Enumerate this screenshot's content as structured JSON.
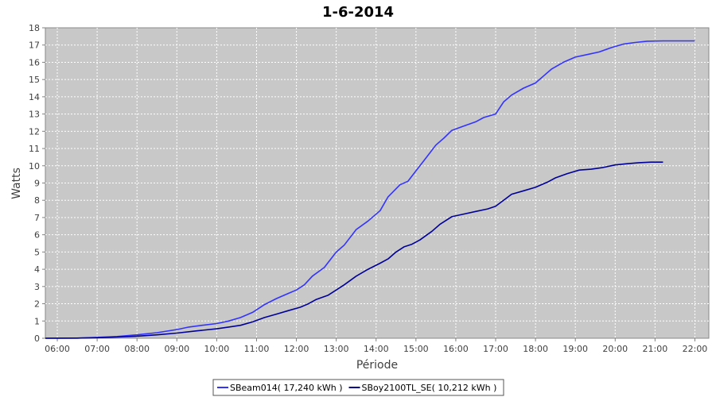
{
  "chart_data": {
    "type": "line",
    "title": "1-6-2014",
    "xlabel": "Période",
    "ylabel": "Watts",
    "xlim": [
      5.7,
      22.35
    ],
    "ylim": [
      0,
      18
    ],
    "grid": true,
    "legend_position": "bottom",
    "x_ticks": [
      {
        "x": 6,
        "label": "06:00"
      },
      {
        "x": 7,
        "label": "07:00"
      },
      {
        "x": 8,
        "label": "08:00"
      },
      {
        "x": 9,
        "label": "09:00"
      },
      {
        "x": 10,
        "label": "10:00"
      },
      {
        "x": 11,
        "label": "11:00"
      },
      {
        "x": 12,
        "label": "12:00"
      },
      {
        "x": 13,
        "label": "13:00"
      },
      {
        "x": 14,
        "label": "14:00"
      },
      {
        "x": 15,
        "label": "15:00"
      },
      {
        "x": 16,
        "label": "16:00"
      },
      {
        "x": 17,
        "label": "17:00"
      },
      {
        "x": 18,
        "label": "18:00"
      },
      {
        "x": 19,
        "label": "19:00"
      },
      {
        "x": 20,
        "label": "20:00"
      },
      {
        "x": 21,
        "label": "21:00"
      },
      {
        "x": 22,
        "label": "22:00"
      }
    ],
    "y_ticks": [
      0,
      1,
      2,
      3,
      4,
      5,
      6,
      7,
      8,
      9,
      10,
      11,
      12,
      13,
      14,
      15,
      16,
      17,
      18
    ],
    "series": [
      {
        "name": "SBeam014( 17,240 kWh )",
        "color": "#3333ff",
        "points": [
          [
            5.7,
            0
          ],
          [
            6.5,
            0.01
          ],
          [
            7.0,
            0.05
          ],
          [
            7.5,
            0.1
          ],
          [
            8.0,
            0.2
          ],
          [
            8.5,
            0.32
          ],
          [
            9.0,
            0.5
          ],
          [
            9.3,
            0.65
          ],
          [
            9.7,
            0.77
          ],
          [
            10.0,
            0.85
          ],
          [
            10.3,
            1.0
          ],
          [
            10.6,
            1.2
          ],
          [
            10.9,
            1.5
          ],
          [
            11.2,
            1.95
          ],
          [
            11.5,
            2.3
          ],
          [
            11.8,
            2.6
          ],
          [
            12.0,
            2.8
          ],
          [
            12.2,
            3.1
          ],
          [
            12.4,
            3.6
          ],
          [
            12.7,
            4.1
          ],
          [
            13.0,
            5.0
          ],
          [
            13.2,
            5.4
          ],
          [
            13.5,
            6.3
          ],
          [
            13.8,
            6.8
          ],
          [
            14.1,
            7.4
          ],
          [
            14.3,
            8.2
          ],
          [
            14.6,
            8.9
          ],
          [
            14.8,
            9.1
          ],
          [
            15.0,
            9.7
          ],
          [
            15.2,
            10.3
          ],
          [
            15.5,
            11.2
          ],
          [
            15.7,
            11.6
          ],
          [
            15.9,
            12.05
          ],
          [
            16.2,
            12.3
          ],
          [
            16.5,
            12.55
          ],
          [
            16.7,
            12.8
          ],
          [
            17.0,
            13.0
          ],
          [
            17.2,
            13.7
          ],
          [
            17.4,
            14.1
          ],
          [
            17.7,
            14.5
          ],
          [
            18.0,
            14.8
          ],
          [
            18.2,
            15.2
          ],
          [
            18.4,
            15.6
          ],
          [
            18.7,
            16.0
          ],
          [
            19.0,
            16.3
          ],
          [
            19.3,
            16.45
          ],
          [
            19.6,
            16.6
          ],
          [
            19.9,
            16.85
          ],
          [
            20.2,
            17.05
          ],
          [
            20.5,
            17.15
          ],
          [
            20.8,
            17.22
          ],
          [
            21.2,
            17.24
          ],
          [
            22.0,
            17.24
          ]
        ]
      },
      {
        "name": "SBoy2100TL_SE( 10,212 kWh )",
        "color": "#000099",
        "points": [
          [
            5.7,
            0
          ],
          [
            6.5,
            0.01
          ],
          [
            7.0,
            0.03
          ],
          [
            7.5,
            0.07
          ],
          [
            8.0,
            0.12
          ],
          [
            8.5,
            0.2
          ],
          [
            9.0,
            0.3
          ],
          [
            9.5,
            0.43
          ],
          [
            10.0,
            0.55
          ],
          [
            10.3,
            0.65
          ],
          [
            10.6,
            0.75
          ],
          [
            10.9,
            0.95
          ],
          [
            11.2,
            1.2
          ],
          [
            11.5,
            1.4
          ],
          [
            11.8,
            1.6
          ],
          [
            12.1,
            1.8
          ],
          [
            12.3,
            2.0
          ],
          [
            12.5,
            2.25
          ],
          [
            12.8,
            2.5
          ],
          [
            13.0,
            2.8
          ],
          [
            13.2,
            3.1
          ],
          [
            13.5,
            3.6
          ],
          [
            13.8,
            4.0
          ],
          [
            14.1,
            4.35
          ],
          [
            14.3,
            4.6
          ],
          [
            14.5,
            5.0
          ],
          [
            14.7,
            5.3
          ],
          [
            14.9,
            5.45
          ],
          [
            15.1,
            5.7
          ],
          [
            15.4,
            6.2
          ],
          [
            15.6,
            6.6
          ],
          [
            15.9,
            7.05
          ],
          [
            16.2,
            7.2
          ],
          [
            16.5,
            7.35
          ],
          [
            16.8,
            7.5
          ],
          [
            17.0,
            7.65
          ],
          [
            17.2,
            8.0
          ],
          [
            17.4,
            8.35
          ],
          [
            17.7,
            8.55
          ],
          [
            18.0,
            8.75
          ],
          [
            18.3,
            9.05
          ],
          [
            18.5,
            9.3
          ],
          [
            18.8,
            9.55
          ],
          [
            19.1,
            9.75
          ],
          [
            19.4,
            9.8
          ],
          [
            19.7,
            9.9
          ],
          [
            20.0,
            10.05
          ],
          [
            20.3,
            10.12
          ],
          [
            20.6,
            10.18
          ],
          [
            20.9,
            10.21
          ],
          [
            21.2,
            10.212
          ]
        ]
      }
    ]
  }
}
